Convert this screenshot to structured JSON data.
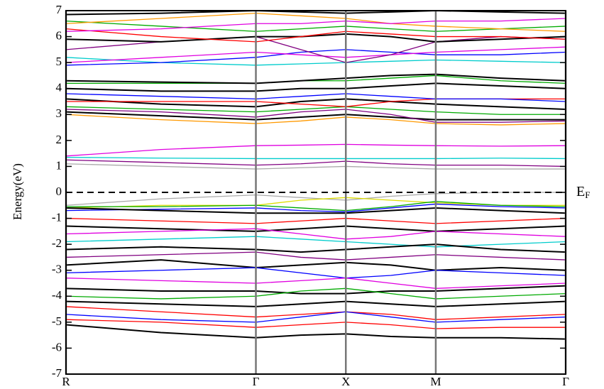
{
  "chart_data": {
    "type": "line",
    "y_label": "Energy(eV)",
    "fermi_label": "E",
    "fermi_subscript": "F",
    "fermi_level": 0,
    "x": [
      0,
      0.19,
      0.38,
      0.47,
      0.56,
      0.65,
      0.74,
      0.87,
      1.0
    ],
    "xlim": [
      0,
      1
    ],
    "xticks": [
      {
        "value": 0,
        "label": "R"
      },
      {
        "value": 0.38,
        "label": "Γ"
      },
      {
        "value": 0.56,
        "label": "X"
      },
      {
        "value": 0.74,
        "label": "M"
      },
      {
        "value": 1.0,
        "label": "Γ"
      }
    ],
    "xgrid": true,
    "ylim": [
      -7,
      7
    ],
    "yticks": [
      -7,
      -6,
      -5,
      -4,
      -3,
      -2,
      -1,
      0,
      1,
      2,
      3,
      4,
      5,
      6,
      7
    ],
    "series": [
      {
        "color": "#00cccc",
        "values": [
          1.35,
          1.32,
          1.3,
          1.3,
          1.3,
          1.3,
          1.3,
          1.32,
          1.3
        ]
      },
      {
        "color": "#e000e0",
        "values": [
          1.4,
          1.65,
          1.8,
          1.82,
          1.85,
          1.82,
          1.8,
          1.78,
          1.8
        ]
      },
      {
        "color": "#800080",
        "values": [
          1.25,
          1.15,
          1.05,
          1.1,
          1.2,
          1.1,
          1.05,
          1.05,
          1.0
        ]
      },
      {
        "color": "#aaaaaa",
        "values": [
          1.1,
          1.0,
          0.9,
          0.95,
          1.0,
          0.95,
          0.9,
          0.9,
          0.9
        ]
      },
      {
        "color": "#ff9900",
        "values": [
          3.0,
          2.8,
          2.65,
          2.75,
          2.9,
          2.8,
          2.65,
          2.6,
          2.65
        ]
      },
      {
        "color": "#000000",
        "values": [
          3.1,
          2.95,
          2.8,
          2.9,
          3.0,
          2.9,
          2.8,
          2.8,
          2.8
        ]
      },
      {
        "color": "#800080",
        "values": [
          3.2,
          3.1,
          2.9,
          3.1,
          3.2,
          3.0,
          2.7,
          2.7,
          2.75
        ]
      },
      {
        "color": "#00aa00",
        "values": [
          3.3,
          3.2,
          3.1,
          3.2,
          3.3,
          3.2,
          3.1,
          3.0,
          3.0
        ]
      },
      {
        "color": "#000000",
        "values": [
          3.6,
          3.4,
          3.3,
          3.5,
          3.6,
          3.5,
          3.4,
          3.3,
          3.2
        ]
      },
      {
        "color": "#ff0000",
        "values": [
          3.5,
          3.5,
          3.5,
          3.4,
          3.3,
          3.5,
          3.6,
          3.6,
          3.6
        ]
      },
      {
        "color": "#0000ff",
        "values": [
          3.8,
          3.7,
          3.6,
          3.7,
          3.8,
          3.7,
          3.6,
          3.6,
          3.5
        ]
      },
      {
        "color": "#000000",
        "values": [
          4.0,
          3.9,
          3.9,
          4.0,
          4.0,
          4.1,
          4.2,
          4.1,
          4.0
        ]
      },
      {
        "color": "#00aa00",
        "values": [
          4.2,
          4.2,
          4.2,
          4.3,
          4.3,
          4.4,
          4.5,
          4.3,
          4.2
        ]
      },
      {
        "color": "#000000",
        "values": [
          4.3,
          4.25,
          4.2,
          4.3,
          4.4,
          4.5,
          4.55,
          4.4,
          4.3
        ]
      },
      {
        "color": "#00cccc",
        "values": [
          5.2,
          5.0,
          4.9,
          4.95,
          5.0,
          5.05,
          5.1,
          5.05,
          5.0
        ]
      },
      {
        "color": "#0000ff",
        "values": [
          4.9,
          5.0,
          5.2,
          5.4,
          5.5,
          5.4,
          5.3,
          5.3,
          5.4
        ]
      },
      {
        "color": "#e000e0",
        "values": [
          5.0,
          5.2,
          5.4,
          5.3,
          5.2,
          5.3,
          5.4,
          5.5,
          5.6
        ]
      },
      {
        "color": "#800080",
        "values": [
          5.5,
          5.8,
          6.0,
          5.5,
          5.0,
          5.3,
          5.8,
          6.0,
          5.9
        ]
      },
      {
        "color": "#000000",
        "values": [
          5.9,
          5.8,
          6.0,
          6.0,
          6.1,
          6.0,
          5.8,
          5.9,
          6.0
        ]
      },
      {
        "color": "#ff0000",
        "values": [
          6.3,
          6.0,
          5.8,
          6.0,
          6.2,
          6.1,
          6.0,
          6.0,
          5.9
        ]
      },
      {
        "color": "#00aa00",
        "values": [
          6.6,
          6.4,
          6.2,
          6.3,
          6.4,
          6.3,
          6.2,
          6.3,
          6.4
        ]
      },
      {
        "color": "#ff9900",
        "values": [
          6.5,
          6.7,
          6.9,
          6.8,
          6.7,
          6.5,
          6.4,
          6.3,
          6.2
        ]
      },
      {
        "color": "#000000",
        "values": [
          6.85,
          6.9,
          7.0,
          6.95,
          6.9,
          6.95,
          7.0,
          6.95,
          6.9
        ]
      },
      {
        "color": "#e000e0",
        "values": [
          6.2,
          6.3,
          6.5,
          6.5,
          6.6,
          6.5,
          6.6,
          6.6,
          6.7
        ]
      },
      {
        "color": "#aaaaaa",
        "values": [
          -0.5,
          -0.25,
          -0.1,
          -0.2,
          -0.3,
          -0.15,
          -0.05,
          0,
          0
        ]
      },
      {
        "color": "#dddd00",
        "values": [
          -0.6,
          -0.5,
          -0.5,
          -0.3,
          -0.2,
          -0.3,
          -0.4,
          -0.5,
          -0.5
        ]
      },
      {
        "color": "#00aa00",
        "values": [
          -0.55,
          -0.55,
          -0.5,
          -0.6,
          -0.7,
          -0.55,
          -0.35,
          -0.5,
          -0.55
        ]
      },
      {
        "color": "#0000ff",
        "values": [
          -0.7,
          -0.65,
          -0.6,
          -0.7,
          -0.75,
          -0.6,
          -0.45,
          -0.55,
          -0.6
        ]
      },
      {
        "color": "#000000",
        "values": [
          -0.6,
          -0.7,
          -0.8,
          -0.8,
          -0.8,
          -0.7,
          -0.6,
          -0.7,
          -0.8
        ]
      },
      {
        "color": "#ff0000",
        "values": [
          -1.0,
          -1.1,
          -1.2,
          -1.1,
          -1.0,
          -1.1,
          -1.2,
          -1.1,
          -1.0
        ]
      },
      {
        "color": "#000000",
        "values": [
          -1.3,
          -1.4,
          -1.5,
          -1.4,
          -1.3,
          -1.4,
          -1.5,
          -1.4,
          -1.3
        ]
      },
      {
        "color": "#e000e0",
        "values": [
          -1.6,
          -1.5,
          -1.4,
          -1.6,
          -1.8,
          -1.7,
          -1.5,
          -1.6,
          -1.7
        ]
      },
      {
        "color": "#00cccc",
        "values": [
          -1.9,
          -1.8,
          -1.7,
          -1.8,
          -1.9,
          -2.0,
          -2.1,
          -2.0,
          -1.9
        ]
      },
      {
        "color": "#000000",
        "values": [
          -2.2,
          -2.1,
          -2.2,
          -2.3,
          -2.2,
          -2.1,
          -2.0,
          -2.2,
          -2.3
        ]
      },
      {
        "color": "#800080",
        "values": [
          -2.5,
          -2.4,
          -2.3,
          -2.5,
          -2.6,
          -2.5,
          -2.4,
          -2.5,
          -2.6
        ]
      },
      {
        "color": "#000000",
        "values": [
          -2.8,
          -2.6,
          -2.9,
          -2.8,
          -2.7,
          -2.8,
          -3.0,
          -2.9,
          -3.0
        ]
      },
      {
        "color": "#0000ff",
        "values": [
          -3.1,
          -3.0,
          -2.9,
          -3.1,
          -3.3,
          -3.2,
          -3.0,
          -3.1,
          -3.2
        ]
      },
      {
        "color": "#e000e0",
        "values": [
          -3.3,
          -3.4,
          -3.5,
          -3.4,
          -3.3,
          -3.5,
          -3.7,
          -3.6,
          -3.5
        ]
      },
      {
        "color": "#000000",
        "values": [
          -3.7,
          -3.8,
          -3.8,
          -3.9,
          -3.9,
          -3.8,
          -3.8,
          -3.7,
          -3.6
        ]
      },
      {
        "color": "#00aa00",
        "values": [
          -4.0,
          -4.1,
          -4.0,
          -3.8,
          -3.7,
          -3.9,
          -4.1,
          -4.0,
          -3.9
        ]
      },
      {
        "color": "#000000",
        "values": [
          -4.2,
          -4.3,
          -4.4,
          -4.3,
          -4.2,
          -4.3,
          -4.4,
          -4.3,
          -4.2
        ]
      },
      {
        "color": "#ff0000",
        "values": [
          -4.4,
          -4.6,
          -4.8,
          -4.7,
          -4.6,
          -4.7,
          -4.9,
          -4.8,
          -4.7
        ]
      },
      {
        "color": "#0000ff",
        "values": [
          -4.7,
          -4.9,
          -5.0,
          -4.8,
          -4.6,
          -4.8,
          -5.0,
          -4.9,
          -4.8
        ]
      },
      {
        "color": "#ff0000",
        "values": [
          -4.9,
          -5.0,
          -5.2,
          -5.1,
          -5.0,
          -5.1,
          -5.25,
          -5.2,
          -5.2
        ]
      },
      {
        "color": "#000000",
        "values": [
          -5.1,
          -5.4,
          -5.6,
          -5.5,
          -5.45,
          -5.55,
          -5.6,
          -5.6,
          -5.65
        ]
      }
    ]
  }
}
